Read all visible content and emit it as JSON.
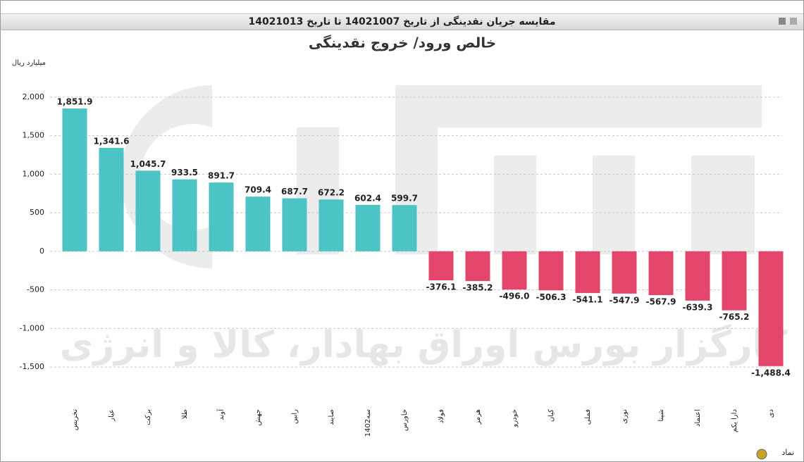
{
  "window_title": "مقایسه جریان نقدینگی از تاریخ 14021007 تا تاریخ 14021013",
  "chart_data": {
    "type": "bar",
    "title": "خالص ورود/ خروج نقدینگی",
    "y_label": "میلیارد ریال",
    "x_label": "نماد",
    "watermark": "کارگزار بورس اوراق بهادار، کالا و انرژی",
    "categories": [
      "تخریس",
      "عیار",
      "برکت",
      "طلا",
      "آوند",
      "جهش",
      "رابین",
      "صایند",
      "سه1402",
      "خاورس",
      "فولاد",
      "هرمز",
      "خودرو",
      "کیان",
      "فملی",
      "نوری",
      "شپنا",
      "اعتماد",
      "دارا یکم",
      "دی"
    ],
    "values": [
      1851.9,
      1341.6,
      1045.7,
      933.5,
      891.7,
      709.4,
      687.7,
      672.2,
      602.4,
      599.7,
      -376.1,
      -385.2,
      -496.0,
      -506.3,
      -541.1,
      -547.9,
      -567.9,
      -639.3,
      -765.2,
      -1488.4
    ],
    "value_labels": [
      "1,851.9",
      "1,341.6",
      "1,045.7",
      "933.5",
      "891.7",
      "709.4",
      "687.7",
      "672.2",
      "602.4",
      "599.7",
      "-376.1",
      "-385.2",
      "-496.0",
      "-506.3",
      "-541.1",
      "-547.9",
      "-567.9",
      "-639.3",
      "-765.2",
      "-1,488.4"
    ],
    "color_positive": "#4cc3c4",
    "color_negative": "#e4456b",
    "ylim": [
      -1700,
      2300
    ],
    "yticks": [
      {
        "value": -1500,
        "label": "-1,500"
      },
      {
        "value": -1000,
        "label": "-1,000"
      },
      -500,
      0,
      500,
      {
        "value": 1000,
        "label": "1,000"
      },
      {
        "value": 1500,
        "label": "1,500"
      },
      {
        "value": 2000,
        "label": "2,000"
      }
    ],
    "grid": true
  }
}
